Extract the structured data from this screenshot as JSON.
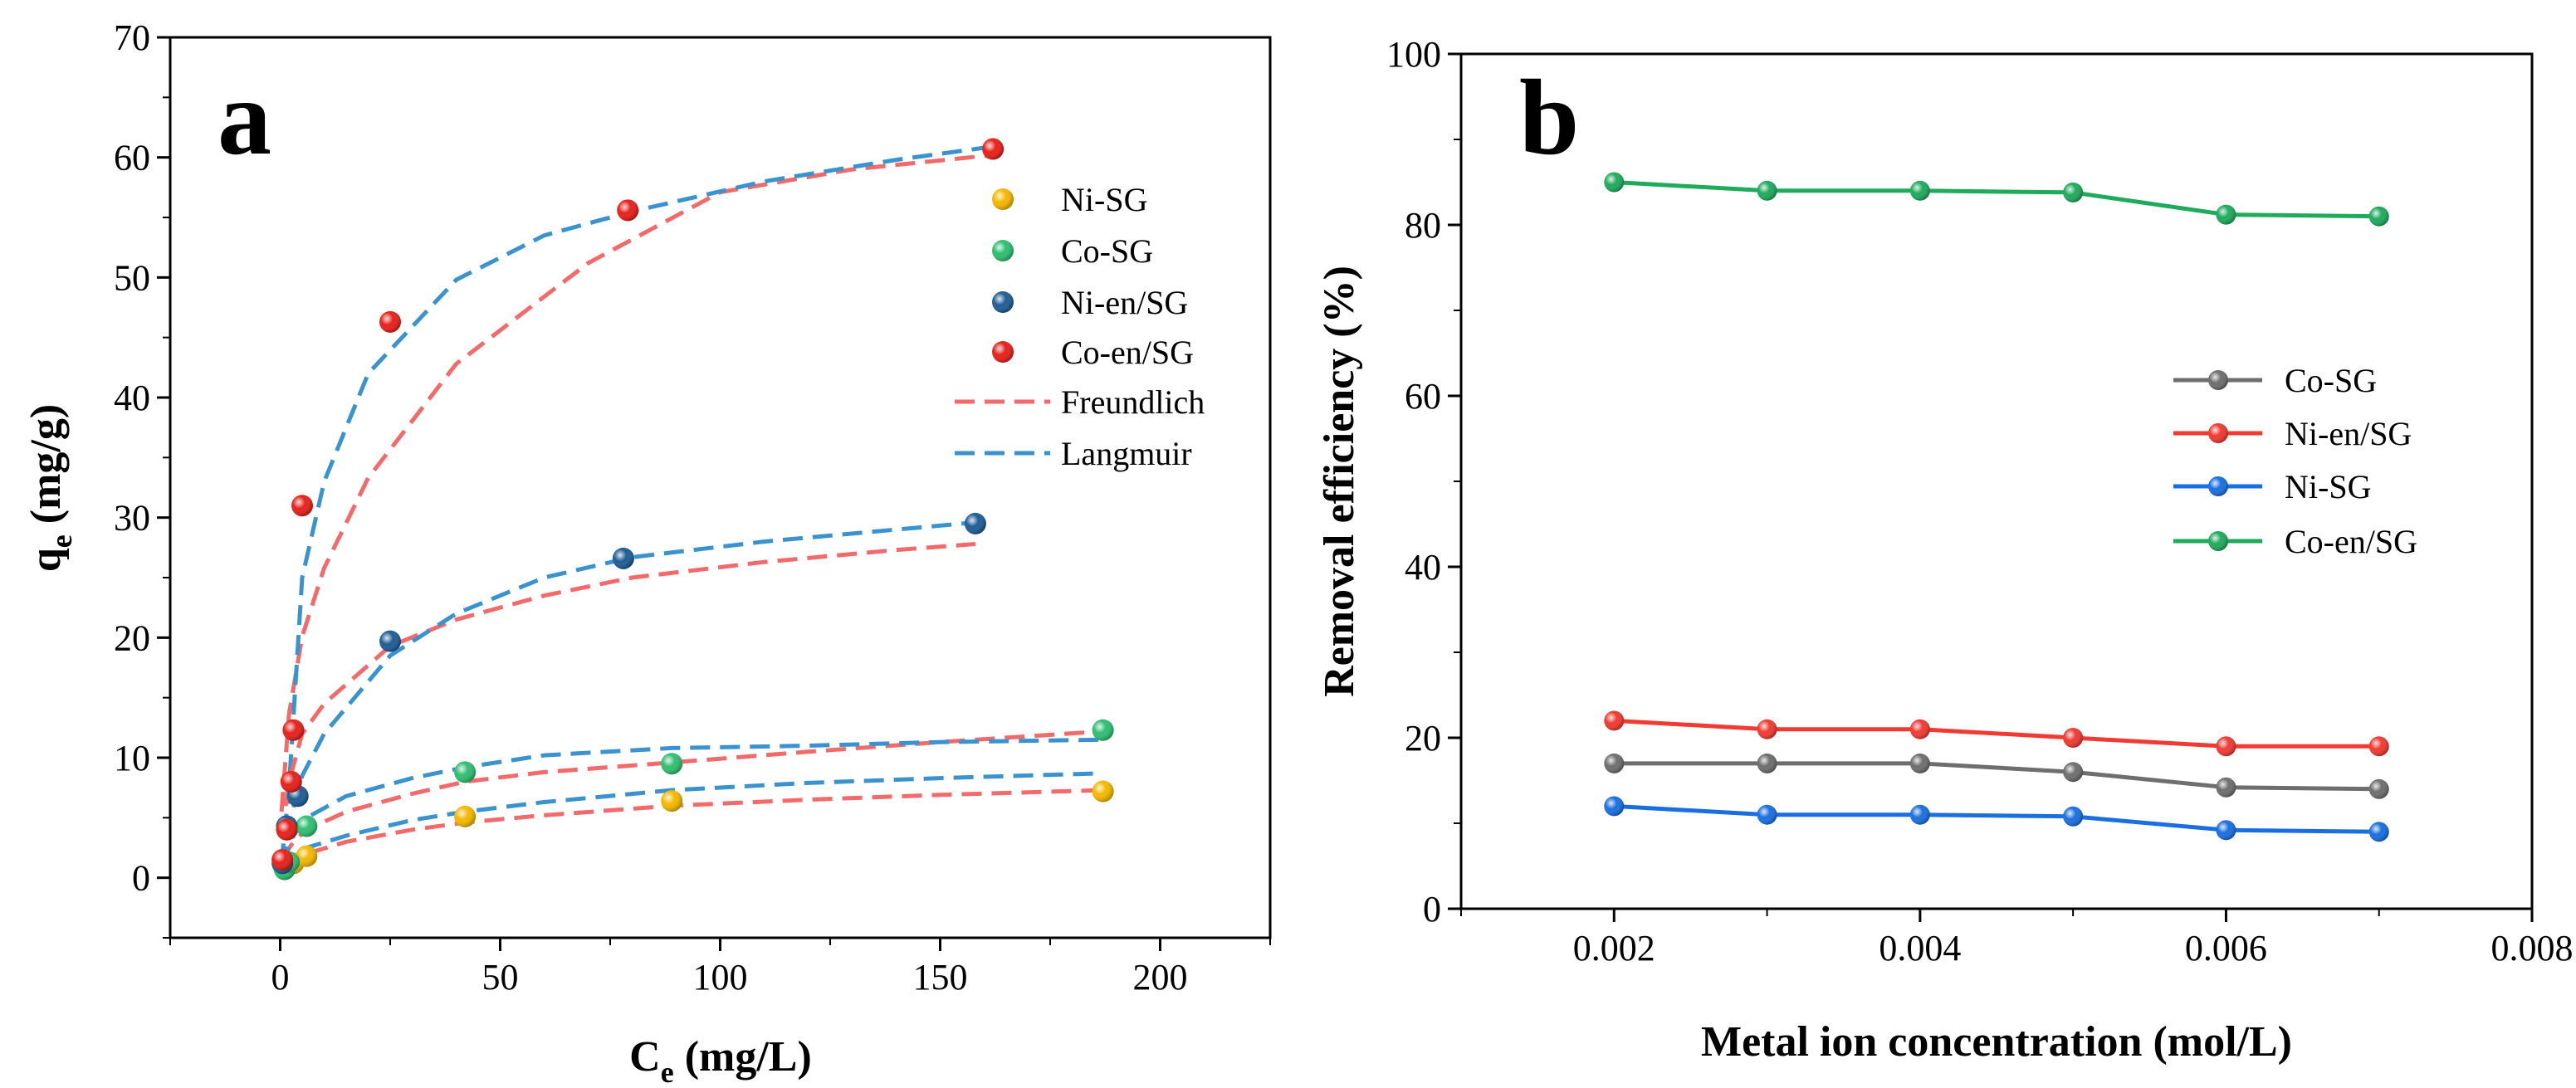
{
  "chart_data": [
    {
      "panel": "a",
      "type": "scatter",
      "xlabel_main": "C",
      "xlabel_sub": "e",
      "xlabel_unit": " (mg/L)",
      "ylabel_main": "q",
      "ylabel_sub": "e",
      "ylabel_unit": " (mg/g)",
      "xlim": [
        -25,
        225
      ],
      "ylim": [
        -5,
        70
      ],
      "xticks": [
        0,
        50,
        100,
        150,
        200
      ],
      "yticks": [
        0,
        10,
        20,
        30,
        40,
        50,
        60,
        70
      ],
      "legend_position": "right-upper",
      "series": [
        {
          "name": "Ni-SG",
          "color": "#f5b800",
          "x": [
            1,
            3,
            6,
            42,
            89,
            187
          ],
          "y": [
            0.8,
            1.2,
            1.8,
            5.1,
            6.4,
            7.2
          ]
        },
        {
          "name": "Co-SG",
          "color": "#2fbf71",
          "x": [
            1,
            2,
            6,
            42,
            89,
            187
          ],
          "y": [
            0.7,
            1.3,
            4.3,
            8.8,
            9.5,
            12.3
          ]
        },
        {
          "name": "Ni-en/SG",
          "color": "#1e5d96",
          "x": [
            0.5,
            1.5,
            4,
            25,
            78,
            158
          ],
          "y": [
            1.2,
            4.3,
            6.8,
            19.7,
            26.6,
            29.5
          ]
        },
        {
          "name": "Co-en/SG",
          "color": "#e8201a",
          "x": [
            0.5,
            1.5,
            2.5,
            3,
            5,
            25,
            79,
            162
          ],
          "y": [
            1.5,
            4,
            8,
            12.3,
            31,
            46.3,
            55.6,
            60.7
          ]
        }
      ],
      "fits": [
        {
          "name": "Freundlich",
          "color": "#f26a6a"
        },
        {
          "name": "Langmuir",
          "color": "#3a93cf"
        }
      ],
      "fit_curves": [
        {
          "model": "Freundlich",
          "color": "#f26a6a",
          "x": [
            0.3,
            2,
            5,
            10,
            20,
            40,
            70,
            100,
            130,
            162
          ],
          "y": [
            5.5,
            13.6,
            20.1,
            25.8,
            33.3,
            42.8,
            51.2,
            57.1,
            59.0,
            60.2
          ]
        },
        {
          "model": "Langmuir",
          "color": "#3a93cf",
          "x": [
            0.3,
            2,
            5,
            10,
            20,
            40,
            60,
            80,
            110,
            140,
            162
          ],
          "y": [
            1.2,
            7.5,
            25.0,
            33.0,
            42.0,
            49.8,
            53.5,
            55.5,
            58.0,
            59.8,
            60.9
          ]
        },
        {
          "model": "Freundlich",
          "color": "#f26a6a",
          "x": [
            0.3,
            2,
            5,
            10,
            25,
            40,
            60,
            80,
            110,
            140,
            158
          ],
          "y": [
            3.5,
            8.0,
            12.0,
            14.5,
            19.3,
            21.5,
            23.5,
            25.0,
            26.3,
            27.3,
            27.8
          ]
        },
        {
          "model": "Langmuir",
          "color": "#3a93cf",
          "x": [
            0.3,
            2,
            5,
            10,
            25,
            40,
            60,
            80,
            110,
            140,
            158
          ],
          "y": [
            1.0,
            4.5,
            8.5,
            12.0,
            18.5,
            22.0,
            25.0,
            26.7,
            28.0,
            29.0,
            29.6
          ]
        },
        {
          "model": "Freundlich",
          "color": "#f26a6a",
          "x": [
            0.3,
            3,
            6,
            15,
            30,
            42,
            60,
            89,
            120,
            150,
            187
          ],
          "y": [
            1.5,
            3.0,
            4.0,
            5.5,
            7.0,
            8.0,
            8.8,
            9.6,
            10.5,
            11.3,
            12.2
          ]
        },
        {
          "model": "Langmuir",
          "color": "#3a93cf",
          "x": [
            0.3,
            3,
            6,
            15,
            30,
            42,
            60,
            89,
            120,
            150,
            187
          ],
          "y": [
            1.0,
            3.5,
            5.0,
            6.8,
            8.3,
            9.2,
            10.2,
            10.8,
            11.0,
            11.3,
            11.5
          ]
        },
        {
          "model": "Freundlich",
          "color": "#f26a6a",
          "x": [
            0.3,
            3,
            6,
            15,
            30,
            42,
            60,
            89,
            120,
            150,
            187
          ],
          "y": [
            1.0,
            1.6,
            2.0,
            3.0,
            4.0,
            4.6,
            5.2,
            6.0,
            6.5,
            6.9,
            7.3
          ]
        },
        {
          "model": "Langmuir",
          "color": "#3a93cf",
          "x": [
            0.3,
            3,
            6,
            15,
            30,
            42,
            60,
            89,
            120,
            150,
            187
          ],
          "y": [
            0.5,
            1.5,
            2.5,
            3.5,
            4.8,
            5.5,
            6.3,
            7.3,
            7.9,
            8.3,
            8.7
          ]
        }
      ]
    },
    {
      "panel": "b",
      "type": "line",
      "xlabel": "Metal ion concentration (mol/L)",
      "ylabel": "Removal efficiency (%)",
      "xlim": [
        0.001,
        0.008
      ],
      "ylim": [
        0,
        100
      ],
      "xticks": [
        0.002,
        0.004,
        0.006,
        0.008
      ],
      "xtick_labels": [
        "0.002",
        "0.004",
        "0.006",
        "0.008"
      ],
      "yticks": [
        0,
        20,
        40,
        60,
        80,
        100
      ],
      "legend_position": "right-middle",
      "x": [
        0.002,
        0.003,
        0.004,
        0.005,
        0.006,
        0.007
      ],
      "series": [
        {
          "name": "Co-SG",
          "color": "#6e6e6e",
          "values": [
            17,
            17,
            17,
            16,
            14.2,
            14
          ]
        },
        {
          "name": "Ni-en/SG",
          "color": "#f03a32",
          "values": [
            22,
            21,
            21,
            20,
            19,
            19
          ]
        },
        {
          "name": "Ni-SG",
          "color": "#1a6fe0",
          "values": [
            12,
            11,
            11,
            10.8,
            9.2,
            9
          ]
        },
        {
          "name": "Co-en/SG",
          "color": "#1faa5c",
          "values": [
            85,
            84,
            84,
            83.8,
            81.2,
            81
          ]
        }
      ]
    }
  ]
}
